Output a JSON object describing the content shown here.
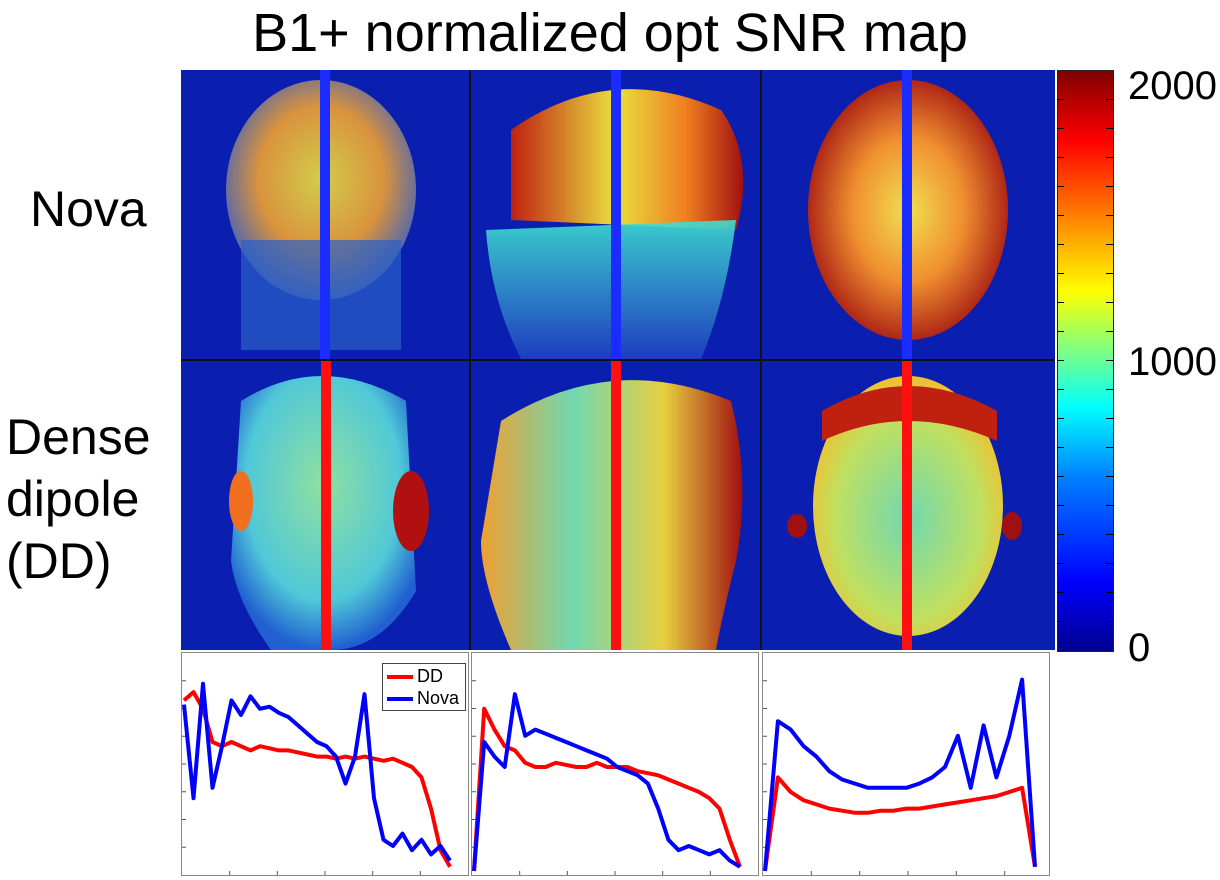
{
  "title": "B1+ normalized opt SNR map",
  "rows": [
    {
      "label": "Nova"
    },
    {
      "label": "Dense dipole (DD)"
    }
  ],
  "colorbar": {
    "max_label": "2000",
    "mid_label": "1000",
    "min_label": "0",
    "colors": [
      "#00008f",
      "#0000ff",
      "#0080ff",
      "#00ffff",
      "#80ff80",
      "#ffff00",
      "#ff8000",
      "#ff0000",
      "#800000"
    ]
  },
  "legend": {
    "items": [
      {
        "label": "DD",
        "color": "#ff0000"
      },
      {
        "label": "Nova",
        "color": "#0000ff"
      }
    ]
  },
  "colors": {
    "background_map": "#0a1fb0",
    "nova_line": "#1a2cff",
    "dd_line": "#ff1010"
  },
  "chart_data": [
    {
      "type": "line",
      "view": "coronal",
      "series": [
        {
          "name": "DD",
          "values": [
            0.82,
            0.86,
            0.78,
            0.62,
            0.6,
            0.62,
            0.6,
            0.58,
            0.6,
            0.59,
            0.58,
            0.58,
            0.57,
            0.56,
            0.55,
            0.55,
            0.54,
            0.55,
            0.54,
            0.55,
            0.54,
            0.53,
            0.54,
            0.52,
            0.5,
            0.45,
            0.3,
            0.1,
            0.02
          ]
        },
        {
          "name": "Nova",
          "values": [
            0.8,
            0.35,
            0.9,
            0.4,
            0.6,
            0.82,
            0.75,
            0.84,
            0.78,
            0.79,
            0.76,
            0.74,
            0.7,
            0.66,
            0.62,
            0.6,
            0.55,
            0.42,
            0.55,
            0.85,
            0.35,
            0.15,
            0.12,
            0.18,
            0.1,
            0.15,
            0.08,
            0.12,
            0.05
          ]
        }
      ]
    },
    {
      "type": "line",
      "view": "sagittal",
      "series": [
        {
          "name": "DD",
          "values": [
            0.0,
            0.78,
            0.68,
            0.6,
            0.58,
            0.52,
            0.5,
            0.5,
            0.52,
            0.51,
            0.5,
            0.5,
            0.52,
            0.5,
            0.5,
            0.5,
            0.48,
            0.47,
            0.46,
            0.44,
            0.42,
            0.4,
            0.38,
            0.35,
            0.3,
            0.15,
            0.02
          ]
        },
        {
          "name": "Nova",
          "values": [
            0.0,
            0.62,
            0.55,
            0.5,
            0.85,
            0.65,
            0.68,
            0.66,
            0.64,
            0.62,
            0.6,
            0.58,
            0.56,
            0.54,
            0.5,
            0.48,
            0.46,
            0.42,
            0.3,
            0.15,
            0.1,
            0.12,
            0.1,
            0.08,
            0.1,
            0.05,
            0.02
          ]
        }
      ]
    },
    {
      "type": "line",
      "view": "axial",
      "series": [
        {
          "name": "DD",
          "values": [
            0.0,
            0.45,
            0.38,
            0.34,
            0.32,
            0.3,
            0.29,
            0.28,
            0.28,
            0.29,
            0.29,
            0.3,
            0.3,
            0.31,
            0.32,
            0.33,
            0.34,
            0.35,
            0.36,
            0.38,
            0.4,
            0.02
          ]
        },
        {
          "name": "Nova",
          "values": [
            0.0,
            0.72,
            0.68,
            0.6,
            0.55,
            0.48,
            0.44,
            0.42,
            0.4,
            0.4,
            0.4,
            0.4,
            0.42,
            0.45,
            0.5,
            0.65,
            0.4,
            0.7,
            0.45,
            0.65,
            0.92,
            0.02
          ]
        }
      ]
    }
  ]
}
